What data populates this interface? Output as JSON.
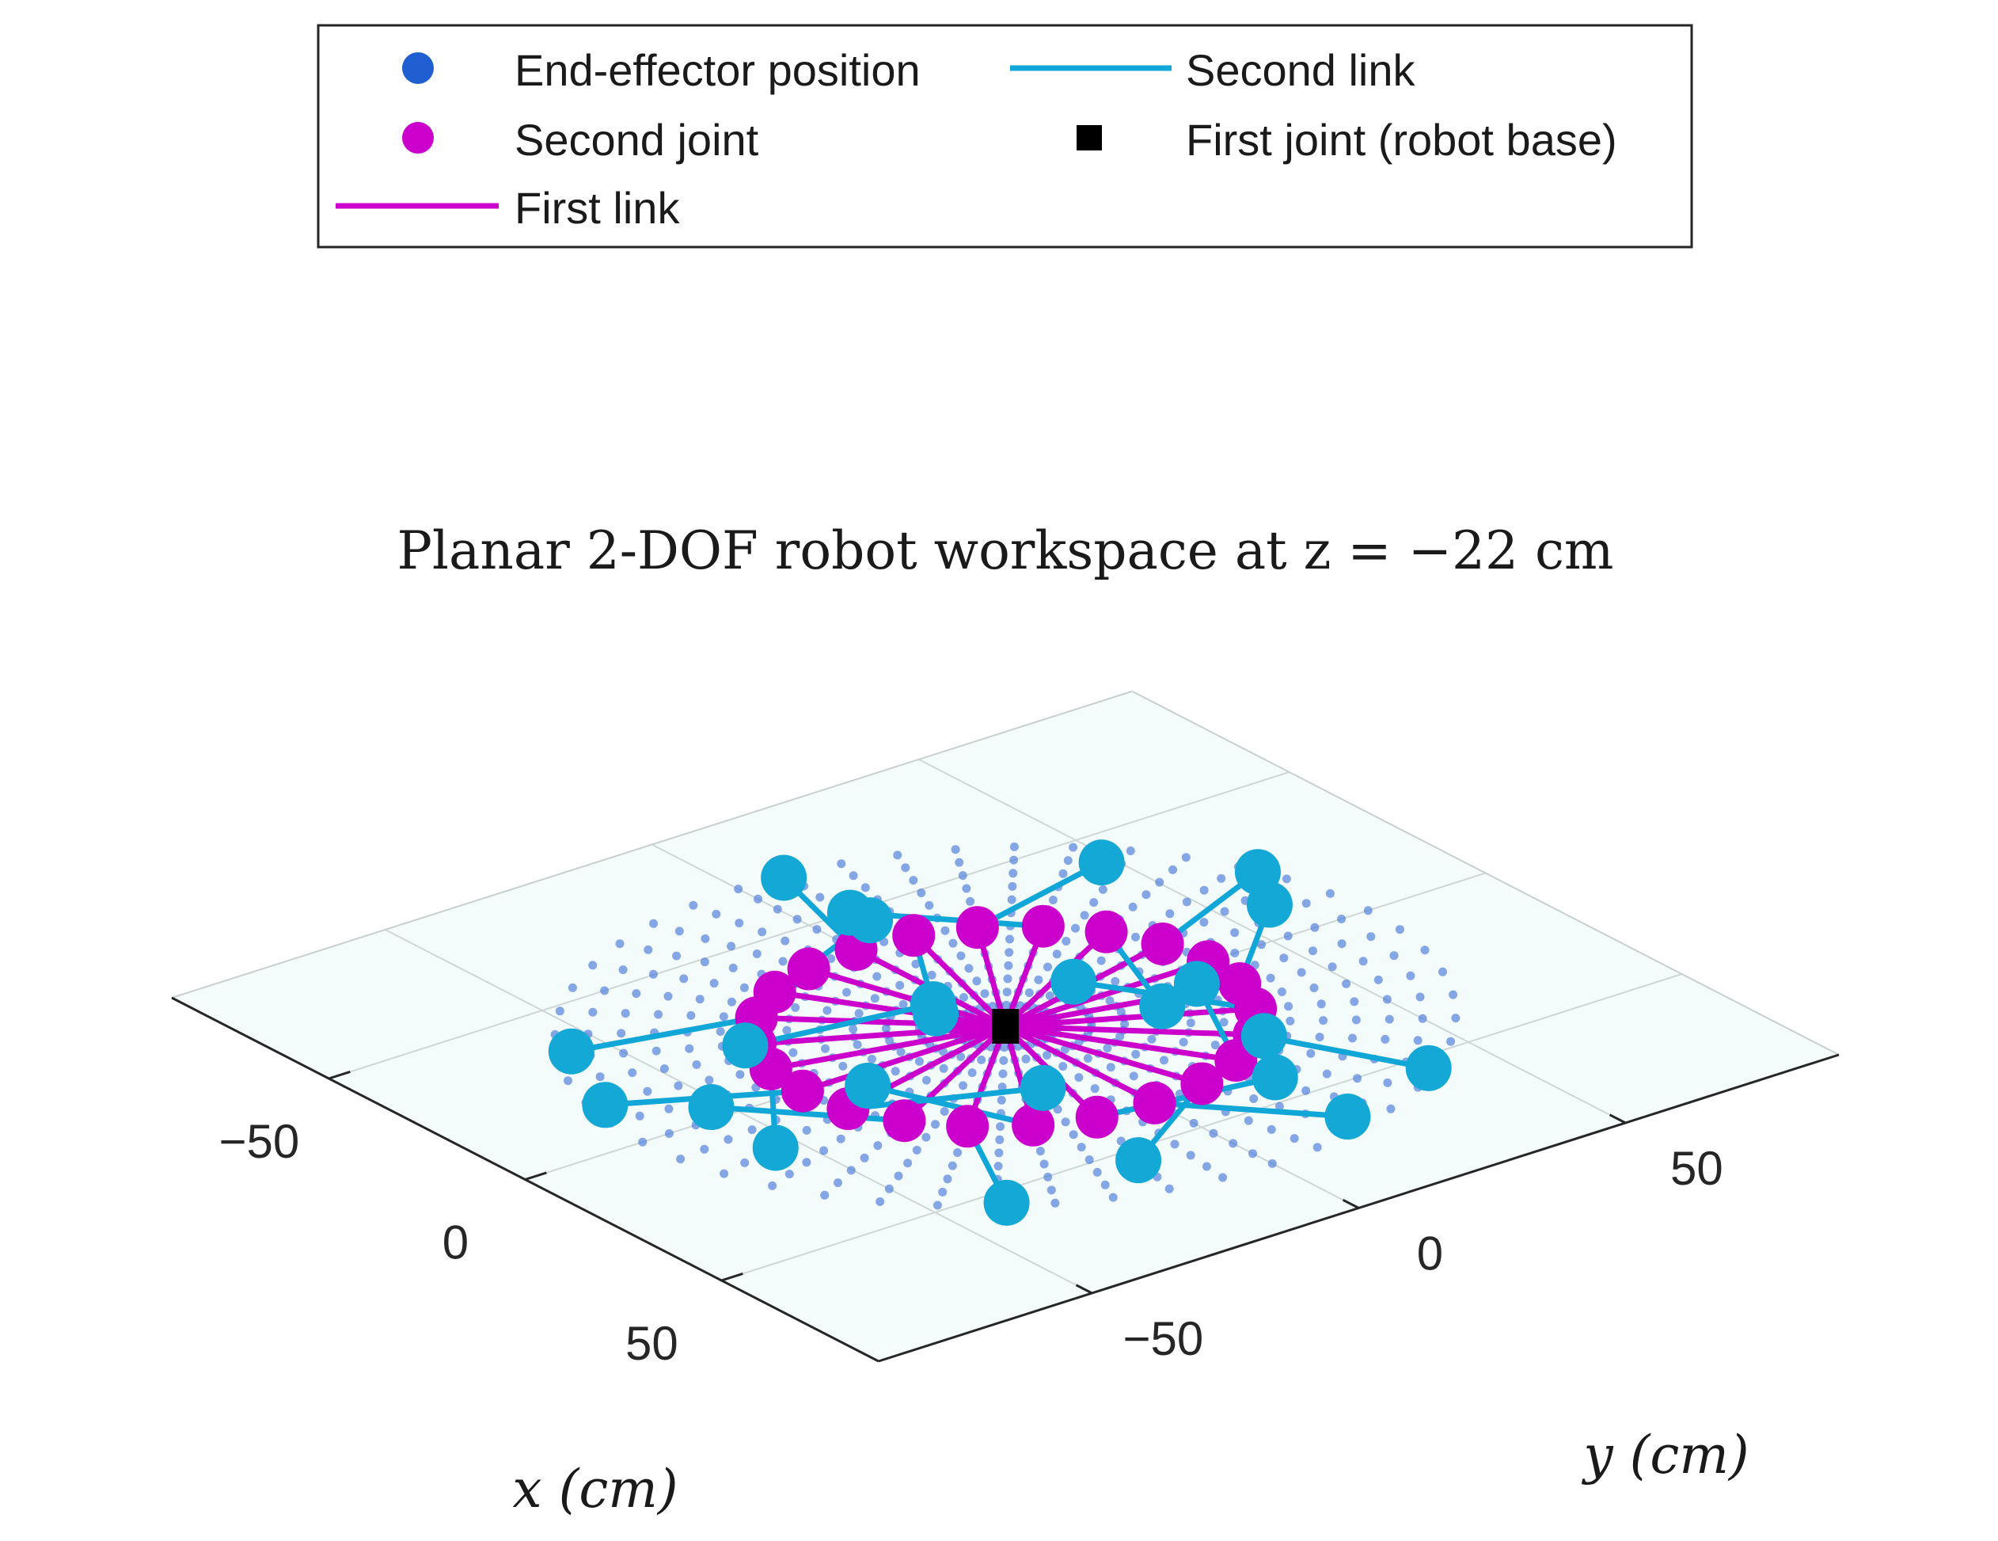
{
  "chart_data": {
    "type": "scatter",
    "title": "Planar 2-DOF robot workspace at z = −22 cm",
    "xlabel": "x (cm)",
    "ylabel": "y (cm)",
    "xlim": [
      -90,
      90
    ],
    "ylim": [
      -90,
      90
    ],
    "z": -22,
    "x_ticks": [
      {
        "value": -50,
        "label": "−50"
      },
      {
        "value": 0,
        "label": "0"
      },
      {
        "value": 50,
        "label": "50"
      }
    ],
    "y_ticks": [
      {
        "value": -50,
        "label": "−50"
      },
      {
        "value": 0,
        "label": "0"
      },
      {
        "value": 50,
        "label": "50"
      }
    ],
    "grid": true,
    "legend_position": "top",
    "legend": [
      {
        "label": "End-effector position",
        "marker": "dot",
        "color": "#1f5fd1"
      },
      {
        "label": "Second link",
        "marker": "line",
        "color": "#10a6d8"
      },
      {
        "label": "Second joint",
        "marker": "dot",
        "color": "#cc00cc"
      },
      {
        "label": "First joint (robot base)",
        "marker": "square",
        "color": "#000000"
      },
      {
        "label": "First link",
        "marker": "line",
        "color": "#cc00cc"
      }
    ],
    "workspace": {
      "r_min": 8,
      "r_max": 68,
      "rings": 13,
      "angular_step_deg": 7.5,
      "color": "#4a78d8"
    },
    "base": [
      0,
      0
    ],
    "first_link_length": 38,
    "second_link_length": 30,
    "configurations": [
      {
        "theta1_deg": 0,
        "theta2_deg": 40
      },
      {
        "theta1_deg": 15,
        "theta2_deg": -70
      },
      {
        "theta1_deg": 30,
        "theta2_deg": 125
      },
      {
        "theta1_deg": 45,
        "theta2_deg": -20
      },
      {
        "theta1_deg": 60,
        "theta2_deg": 150
      },
      {
        "theta1_deg": 75,
        "theta2_deg": 60
      },
      {
        "theta1_deg": 90,
        "theta2_deg": -110
      },
      {
        "theta1_deg": 105,
        "theta2_deg": 10
      },
      {
        "theta1_deg": 120,
        "theta2_deg": -140
      },
      {
        "theta1_deg": 135,
        "theta2_deg": 85
      },
      {
        "theta1_deg": 150,
        "theta2_deg": -45
      },
      {
        "theta1_deg": 165,
        "theta2_deg": 165
      },
      {
        "theta1_deg": 180,
        "theta2_deg": -15
      },
      {
        "theta1_deg": 195,
        "theta2_deg": 110
      },
      {
        "theta1_deg": 210,
        "theta2_deg": -95
      },
      {
        "theta1_deg": 225,
        "theta2_deg": 30
      },
      {
        "theta1_deg": 240,
        "theta2_deg": -160
      },
      {
        "theta1_deg": 255,
        "theta2_deg": 70
      },
      {
        "theta1_deg": 270,
        "theta2_deg": -30
      },
      {
        "theta1_deg": 285,
        "theta2_deg": 140
      },
      {
        "theta1_deg": 300,
        "theta2_deg": -80
      },
      {
        "theta1_deg": 315,
        "theta2_deg": 20
      },
      {
        "theta1_deg": 330,
        "theta2_deg": -130
      },
      {
        "theta1_deg": 345,
        "theta2_deg": 95
      }
    ]
  }
}
